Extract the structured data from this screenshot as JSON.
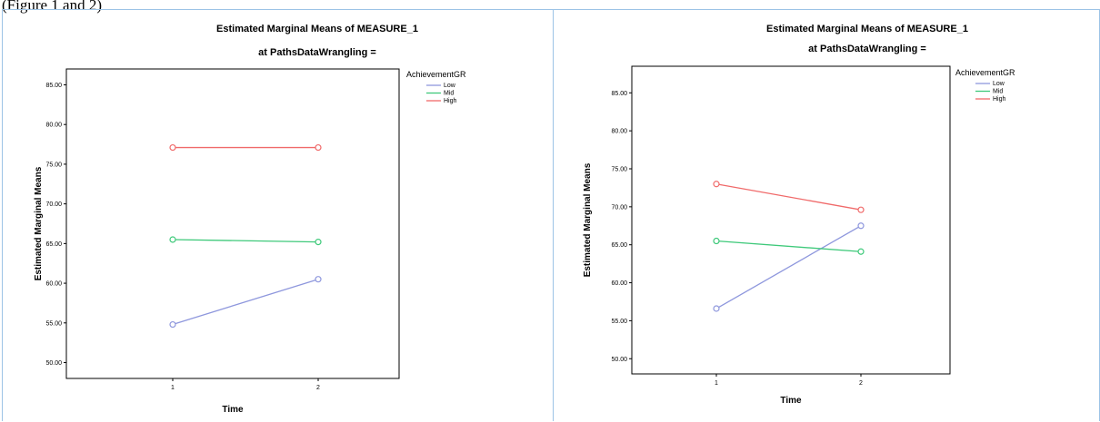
{
  "caption": "(Figure 1 and 2)",
  "chart_data": [
    {
      "type": "line",
      "title": "Estimated Marginal Means of MEASURE_1",
      "subtitle": "at PathsDataWrangling =",
      "xlabel": "Time",
      "ylabel": "Estimated Marginal Means",
      "categories": [
        "1",
        "2"
      ],
      "ylim": [
        48,
        87
      ],
      "yticks": [
        "50.00",
        "55.00",
        "60.00",
        "65.00",
        "70.00",
        "75.00",
        "80.00",
        "85.00"
      ],
      "legend_title": "AchievementGR",
      "legend_position": "right",
      "grid": false,
      "series": [
        {
          "name": "Low",
          "color": "#8e97dd",
          "values": [
            54.8,
            60.5
          ]
        },
        {
          "name": "Mid",
          "color": "#3ec97a",
          "values": [
            65.5,
            65.2
          ]
        },
        {
          "name": "High",
          "color": "#f06a6a",
          "values": [
            77.1,
            77.1
          ]
        }
      ]
    },
    {
      "type": "line",
      "title": "Estimated Marginal Means of MEASURE_1",
      "subtitle": "at PathsDataWrangling =",
      "xlabel": "Time",
      "ylabel": "Estimated Marginal Means",
      "categories": [
        "1",
        "2"
      ],
      "ylim": [
        48,
        88.5
      ],
      "yticks": [
        "50.00",
        "55.00",
        "60.00",
        "65.00",
        "70.00",
        "75.00",
        "80.00",
        "85.00"
      ],
      "legend_title": "AchievementGR",
      "legend_position": "right",
      "grid": false,
      "series": [
        {
          "name": "Low",
          "color": "#8e97dd",
          "values": [
            56.6,
            67.5
          ]
        },
        {
          "name": "Mid",
          "color": "#3ec97a",
          "values": [
            65.5,
            64.1
          ]
        },
        {
          "name": "High",
          "color": "#f06a6a",
          "values": [
            73.0,
            69.6
          ]
        }
      ]
    }
  ]
}
